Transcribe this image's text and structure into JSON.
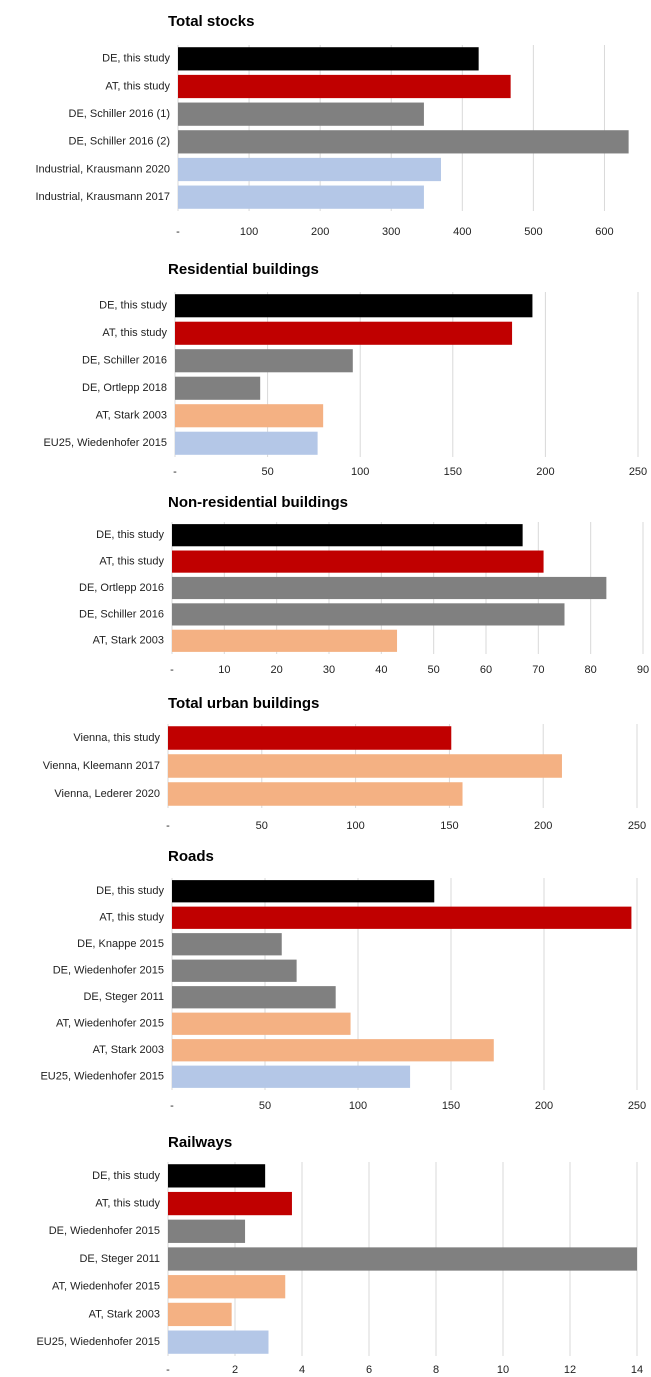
{
  "chart_data": [
    {
      "type": "bar",
      "orientation": "horizontal",
      "title": "Total stocks",
      "categories": [
        "DE, this study",
        "AT, this study",
        "DE, Schiller 2016 (1)",
        "DE, Schiller 2016 (2)",
        "Industrial, Krausmann 2020",
        "Industrial, Krausmann 2017"
      ],
      "values": [
        423,
        468,
        346,
        634,
        370,
        346
      ],
      "colors": [
        "#000000",
        "#c00000",
        "#808080",
        "#808080",
        "#b4c7e7",
        "#b4c7e7"
      ],
      "xlim": [
        0,
        650
      ],
      "xticks": [
        {
          "value": 0,
          "label": "-"
        },
        100,
        200,
        300,
        400,
        500,
        600
      ],
      "grid": true
    },
    {
      "type": "bar",
      "orientation": "horizontal",
      "title": "Residential buildings",
      "categories": [
        "DE, this study",
        "AT, this study",
        "DE, Schiller 2016",
        "DE, Ortlepp 2018",
        "AT, Stark 2003",
        "EU25, Wiedenhofer 2015"
      ],
      "values": [
        193,
        182,
        96,
        46,
        80,
        77
      ],
      "colors": [
        "#000000",
        "#c00000",
        "#808080",
        "#808080",
        "#f4b183",
        "#b4c7e7"
      ],
      "xlim": [
        0,
        250
      ],
      "xticks": [
        {
          "value": 0,
          "label": "-"
        },
        50,
        100,
        150,
        200,
        250
      ],
      "grid": true
    },
    {
      "type": "bar",
      "orientation": "horizontal",
      "title": "Non-residential buildings",
      "categories": [
        "DE, this study",
        "AT, this study",
        "DE, Ortlepp 2016",
        "DE, Schiller 2016",
        "AT, Stark 2003"
      ],
      "values": [
        67,
        71,
        83,
        75,
        43
      ],
      "colors": [
        "#000000",
        "#c00000",
        "#808080",
        "#808080",
        "#f4b183"
      ],
      "xlim": [
        0,
        90
      ],
      "xticks": [
        {
          "value": 0,
          "label": "-"
        },
        10,
        20,
        30,
        40,
        50,
        60,
        70,
        80,
        90
      ],
      "grid": true
    },
    {
      "type": "bar",
      "orientation": "horizontal",
      "title": "Total urban buildings",
      "categories": [
        "Vienna, this study",
        "Vienna, Kleemann 2017",
        "Vienna, Lederer 2020"
      ],
      "values": [
        151,
        210,
        157
      ],
      "colors": [
        "#c00000",
        "#f4b183",
        "#f4b183"
      ],
      "xlim": [
        0,
        250
      ],
      "xticks": [
        {
          "value": 0,
          "label": "-"
        },
        50,
        100,
        150,
        200,
        250
      ],
      "grid": true
    },
    {
      "type": "bar",
      "orientation": "horizontal",
      "title": "Roads",
      "categories": [
        "DE, this study",
        "AT, this study",
        "DE, Knappe 2015",
        "DE, Wiedenhofer 2015",
        "DE, Steger 2011",
        "AT, Wiedenhofer 2015",
        "AT, Stark 2003",
        "EU25, Wiedenhofer 2015"
      ],
      "values": [
        141,
        247,
        59,
        67,
        88,
        96,
        173,
        128
      ],
      "colors": [
        "#000000",
        "#c00000",
        "#808080",
        "#808080",
        "#808080",
        "#f4b183",
        "#f4b183",
        "#b4c7e7"
      ],
      "xlim": [
        0,
        250
      ],
      "xticks": [
        {
          "value": 0,
          "label": "-"
        },
        50,
        100,
        150,
        200,
        250
      ],
      "grid": true
    },
    {
      "type": "bar",
      "orientation": "horizontal",
      "title": "Railways",
      "categories": [
        "DE, this study",
        "AT, this study",
        "DE, Wiedenhofer 2015",
        "DE, Steger 2011",
        "AT, Wiedenhofer 2015",
        "AT, Stark 2003",
        "EU25, Wiedenhofer 2015"
      ],
      "values": [
        2.9,
        3.7,
        2.3,
        14.0,
        3.5,
        1.9,
        3.0
      ],
      "colors": [
        "#000000",
        "#c00000",
        "#808080",
        "#808080",
        "#f4b183",
        "#f4b183",
        "#b4c7e7"
      ],
      "xlim": [
        0,
        14
      ],
      "xticks": [
        {
          "value": 0,
          "label": "-"
        },
        2,
        4,
        6,
        8,
        10,
        12,
        14
      ],
      "grid": true
    }
  ]
}
